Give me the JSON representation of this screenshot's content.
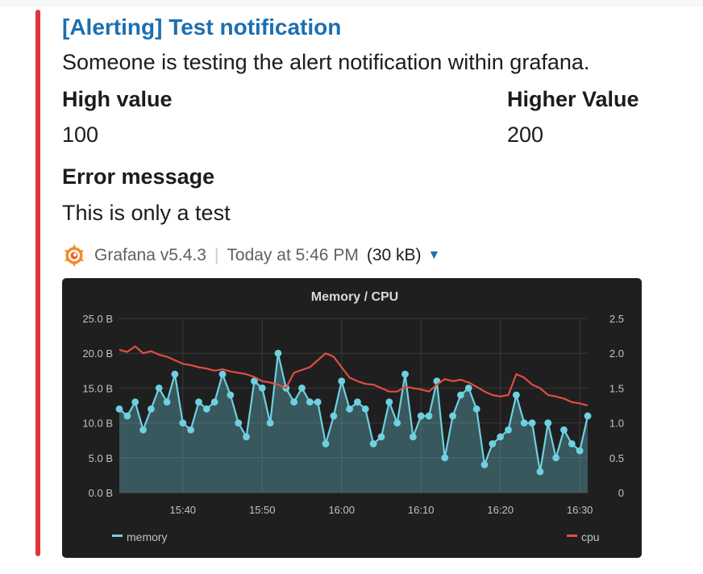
{
  "message": {
    "title": "[Alerting] Test notification",
    "description": "Someone is testing the alert notification within grafana.",
    "fields": [
      {
        "name": "High value",
        "value": "100"
      },
      {
        "name": "Higher Value",
        "value": "200"
      },
      {
        "name": "Error message",
        "value": "This is only a test"
      }
    ],
    "footer": {
      "source": "Grafana v5.4.3",
      "timestamp": "Today at 5:46 PM",
      "size": "(30 kB)",
      "logo_icon": "grafana-logo-icon",
      "expand_icon": "caret-down-icon"
    },
    "accent_color": "#e0333b",
    "title_color": "#1d6fb0"
  },
  "chart_data": {
    "type": "line",
    "title": "Memory / CPU",
    "x_ticks": [
      "15:40",
      "15:50",
      "16:00",
      "16:10",
      "16:20",
      "16:30"
    ],
    "y_left": {
      "ticks": [
        "0.0 B",
        "5.0 B",
        "10.0 B",
        "15.0 B",
        "20.0 B",
        "25.0 B"
      ],
      "range": [
        0,
        25
      ]
    },
    "y_right": {
      "ticks": [
        "0",
        "0.5",
        "1.0",
        "1.5",
        "2.0",
        "2.5"
      ],
      "range": [
        0,
        2.5
      ]
    },
    "x_range_minutes": [
      "15:32",
      "15:32"
    ],
    "series": [
      {
        "name": "memory",
        "axis": "left",
        "color": "#6ed0e0",
        "style": "line+points+fill",
        "values": [
          12,
          11,
          13,
          9,
          12,
          15,
          13,
          17,
          10,
          9,
          13,
          12,
          13,
          17,
          14,
          10,
          8,
          16,
          15,
          10,
          20,
          15,
          13,
          15,
          13,
          13,
          7,
          11,
          16,
          12,
          13,
          12,
          7,
          8,
          13,
          10,
          17,
          8,
          11,
          11,
          16,
          5,
          11,
          14,
          15,
          12,
          4,
          7,
          8,
          9,
          14,
          10,
          10,
          3,
          10,
          5,
          9,
          7,
          6,
          11
        ]
      },
      {
        "name": "cpu",
        "axis": "right",
        "color": "#e24d42",
        "style": "line",
        "values": [
          2.05,
          2.02,
          2.1,
          2.0,
          2.03,
          1.98,
          1.95,
          1.9,
          1.85,
          1.83,
          1.8,
          1.78,
          1.75,
          1.77,
          1.74,
          1.72,
          1.7,
          1.66,
          1.6,
          1.58,
          1.55,
          1.5,
          1.72,
          1.76,
          1.8,
          1.9,
          2.0,
          1.95,
          1.8,
          1.65,
          1.6,
          1.56,
          1.55,
          1.5,
          1.45,
          1.45,
          1.52,
          1.5,
          1.48,
          1.45,
          1.55,
          1.63,
          1.6,
          1.62,
          1.58,
          1.52,
          1.45,
          1.4,
          1.38,
          1.4,
          1.7,
          1.65,
          1.55,
          1.5,
          1.4,
          1.38,
          1.35,
          1.3,
          1.28,
          1.25
        ]
      }
    ],
    "legend": {
      "position": "bottom",
      "items": [
        "memory",
        "cpu"
      ]
    },
    "grid": true,
    "background": "#1f1f20"
  }
}
